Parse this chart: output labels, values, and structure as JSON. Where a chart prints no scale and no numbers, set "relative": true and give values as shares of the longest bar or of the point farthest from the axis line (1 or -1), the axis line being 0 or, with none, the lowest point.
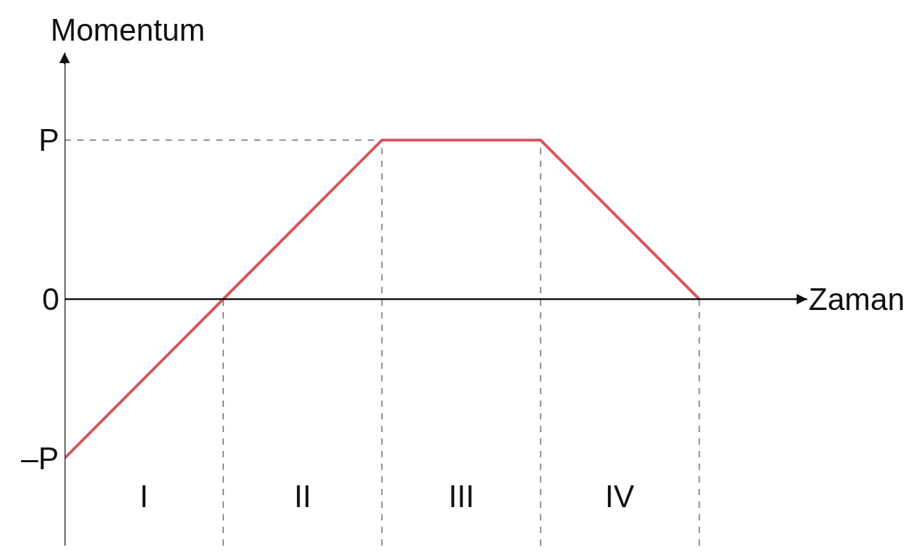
{
  "chart_data": {
    "type": "line",
    "xlabel": "Zaman",
    "ylabel": "Momentum",
    "relative": true,
    "categories": [
      null,
      null,
      null,
      null,
      null
    ],
    "series": [
      {
        "color": "#d9545a",
        "values": [
          -1,
          0,
          1,
          1,
          0
        ]
      }
    ],
    "ref_lines": [
      {
        "axis": "y",
        "value": 1,
        "line_style": "dashed",
        "color": "#8c8c8c"
      }
    ],
    "annotations": [
      "–P",
      "0",
      "P",
      "I",
      "II",
      "III",
      "IV"
    ],
    "grid": "x",
    "marker": "none",
    "line_style": "solid"
  }
}
